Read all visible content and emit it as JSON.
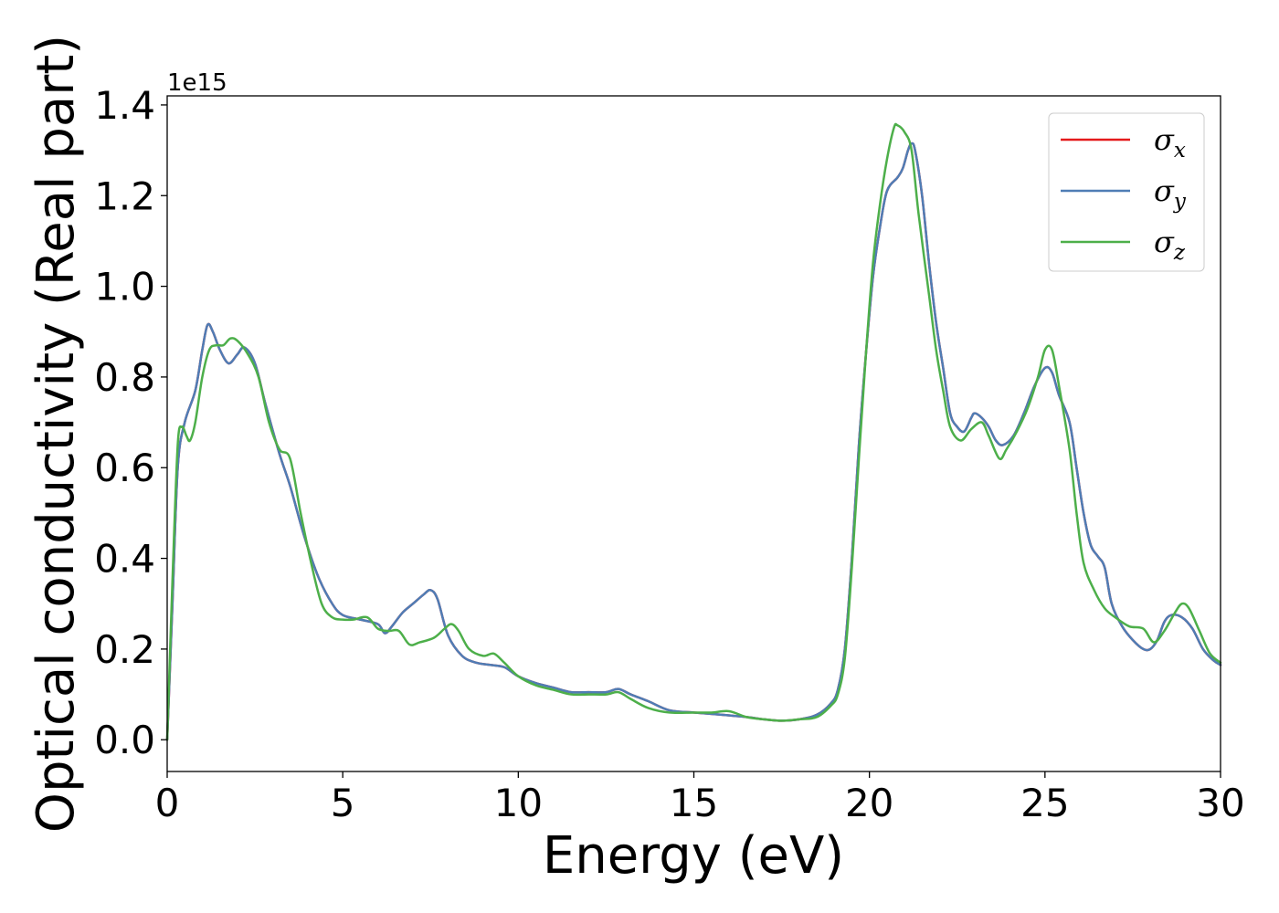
{
  "chart_data": {
    "type": "line",
    "xlabel": "Energy (eV)",
    "ylabel": "Optical conductivity (Real part)",
    "y_offset_label": "1e15",
    "xlim": [
      0,
      30
    ],
    "ylim": [
      -0.07,
      1.42
    ],
    "xticks": [
      0,
      5,
      10,
      15,
      20,
      25,
      30
    ],
    "yticks": [
      0.0,
      0.2,
      0.4,
      0.6,
      0.8,
      1.0,
      1.2,
      1.4
    ],
    "xtick_labels": [
      "0",
      "5",
      "10",
      "15",
      "20",
      "25",
      "30"
    ],
    "ytick_labels": [
      "0.0",
      "0.2",
      "0.4",
      "0.6",
      "0.8",
      "1.0",
      "1.2",
      "1.4"
    ],
    "grid": false,
    "legend_position": "top-right",
    "series": [
      {
        "name": "σx",
        "symbol": "σ",
        "subscript": "x",
        "color": "#e41a1c",
        "points": [
          [
            0,
            0.0
          ],
          [
            0.15,
            0.3
          ],
          [
            0.3,
            0.6
          ],
          [
            0.5,
            0.7
          ],
          [
            0.8,
            0.77
          ],
          [
            1.0,
            0.86
          ],
          [
            1.15,
            0.915
          ],
          [
            1.3,
            0.9
          ],
          [
            1.5,
            0.86
          ],
          [
            1.75,
            0.83
          ],
          [
            2.0,
            0.85
          ],
          [
            2.2,
            0.865
          ],
          [
            2.5,
            0.83
          ],
          [
            2.8,
            0.74
          ],
          [
            3.2,
            0.63
          ],
          [
            3.5,
            0.56
          ],
          [
            3.9,
            0.45
          ],
          [
            4.3,
            0.36
          ],
          [
            4.7,
            0.3
          ],
          [
            5.0,
            0.275
          ],
          [
            5.5,
            0.265
          ],
          [
            6.0,
            0.255
          ],
          [
            6.2,
            0.235
          ],
          [
            6.4,
            0.25
          ],
          [
            6.7,
            0.28
          ],
          [
            7.0,
            0.3
          ],
          [
            7.3,
            0.32
          ],
          [
            7.5,
            0.33
          ],
          [
            7.7,
            0.31
          ],
          [
            8.0,
            0.23
          ],
          [
            8.4,
            0.185
          ],
          [
            8.8,
            0.17
          ],
          [
            9.2,
            0.165
          ],
          [
            9.6,
            0.16
          ],
          [
            10.0,
            0.14
          ],
          [
            10.5,
            0.125
          ],
          [
            11.0,
            0.115
          ],
          [
            11.5,
            0.105
          ],
          [
            12.0,
            0.105
          ],
          [
            12.5,
            0.105
          ],
          [
            12.85,
            0.112
          ],
          [
            13.2,
            0.1
          ],
          [
            13.7,
            0.085
          ],
          [
            14.3,
            0.065
          ],
          [
            15.0,
            0.06
          ],
          [
            15.8,
            0.055
          ],
          [
            16.5,
            0.05
          ],
          [
            17.0,
            0.045
          ],
          [
            17.5,
            0.042
          ],
          [
            18.0,
            0.045
          ],
          [
            18.5,
            0.055
          ],
          [
            18.9,
            0.08
          ],
          [
            19.1,
            0.11
          ],
          [
            19.3,
            0.2
          ],
          [
            19.5,
            0.4
          ],
          [
            19.7,
            0.65
          ],
          [
            19.9,
            0.85
          ],
          [
            20.1,
            1.02
          ],
          [
            20.3,
            1.13
          ],
          [
            20.5,
            1.21
          ],
          [
            20.8,
            1.24
          ],
          [
            20.95,
            1.26
          ],
          [
            21.1,
            1.3
          ],
          [
            21.2,
            1.315
          ],
          [
            21.3,
            1.3
          ],
          [
            21.5,
            1.2
          ],
          [
            21.7,
            1.05
          ],
          [
            21.9,
            0.92
          ],
          [
            22.1,
            0.82
          ],
          [
            22.3,
            0.72
          ],
          [
            22.5,
            0.69
          ],
          [
            22.7,
            0.68
          ],
          [
            22.9,
            0.71
          ],
          [
            23.0,
            0.72
          ],
          [
            23.2,
            0.71
          ],
          [
            23.4,
            0.69
          ],
          [
            23.6,
            0.66
          ],
          [
            23.8,
            0.65
          ],
          [
            24.1,
            0.67
          ],
          [
            24.4,
            0.72
          ],
          [
            24.7,
            0.78
          ],
          [
            25.0,
            0.82
          ],
          [
            25.2,
            0.81
          ],
          [
            25.4,
            0.76
          ],
          [
            25.7,
            0.7
          ],
          [
            25.9,
            0.6
          ],
          [
            26.1,
            0.5
          ],
          [
            26.3,
            0.43
          ],
          [
            26.5,
            0.405
          ],
          [
            26.7,
            0.38
          ],
          [
            26.9,
            0.3
          ],
          [
            27.2,
            0.25
          ],
          [
            27.5,
            0.22
          ],
          [
            27.8,
            0.2
          ],
          [
            28.0,
            0.2
          ],
          [
            28.2,
            0.22
          ],
          [
            28.4,
            0.26
          ],
          [
            28.6,
            0.275
          ],
          [
            28.9,
            0.27
          ],
          [
            29.2,
            0.245
          ],
          [
            29.5,
            0.2
          ],
          [
            29.8,
            0.175
          ],
          [
            30.0,
            0.165
          ]
        ]
      },
      {
        "name": "σy",
        "symbol": "σ",
        "subscript": "y",
        "color": "#4f7db5",
        "points": [
          [
            0,
            0.0
          ],
          [
            0.15,
            0.3
          ],
          [
            0.3,
            0.6
          ],
          [
            0.5,
            0.7
          ],
          [
            0.8,
            0.77
          ],
          [
            1.0,
            0.86
          ],
          [
            1.15,
            0.915
          ],
          [
            1.3,
            0.9
          ],
          [
            1.5,
            0.86
          ],
          [
            1.75,
            0.83
          ],
          [
            2.0,
            0.85
          ],
          [
            2.2,
            0.865
          ],
          [
            2.5,
            0.83
          ],
          [
            2.8,
            0.74
          ],
          [
            3.2,
            0.63
          ],
          [
            3.5,
            0.56
          ],
          [
            3.9,
            0.45
          ],
          [
            4.3,
            0.36
          ],
          [
            4.7,
            0.3
          ],
          [
            5.0,
            0.275
          ],
          [
            5.5,
            0.265
          ],
          [
            6.0,
            0.255
          ],
          [
            6.2,
            0.235
          ],
          [
            6.4,
            0.25
          ],
          [
            6.7,
            0.28
          ],
          [
            7.0,
            0.3
          ],
          [
            7.3,
            0.32
          ],
          [
            7.5,
            0.33
          ],
          [
            7.7,
            0.31
          ],
          [
            8.0,
            0.23
          ],
          [
            8.4,
            0.185
          ],
          [
            8.8,
            0.17
          ],
          [
            9.2,
            0.165
          ],
          [
            9.6,
            0.16
          ],
          [
            10.0,
            0.14
          ],
          [
            10.5,
            0.125
          ],
          [
            11.0,
            0.115
          ],
          [
            11.5,
            0.105
          ],
          [
            12.0,
            0.105
          ],
          [
            12.5,
            0.105
          ],
          [
            12.85,
            0.112
          ],
          [
            13.2,
            0.1
          ],
          [
            13.7,
            0.085
          ],
          [
            14.3,
            0.065
          ],
          [
            15.0,
            0.06
          ],
          [
            15.8,
            0.055
          ],
          [
            16.5,
            0.05
          ],
          [
            17.0,
            0.045
          ],
          [
            17.5,
            0.042
          ],
          [
            18.0,
            0.045
          ],
          [
            18.5,
            0.055
          ],
          [
            18.9,
            0.08
          ],
          [
            19.1,
            0.11
          ],
          [
            19.3,
            0.2
          ],
          [
            19.5,
            0.4
          ],
          [
            19.7,
            0.65
          ],
          [
            19.9,
            0.85
          ],
          [
            20.1,
            1.02
          ],
          [
            20.3,
            1.13
          ],
          [
            20.5,
            1.21
          ],
          [
            20.8,
            1.24
          ],
          [
            20.95,
            1.26
          ],
          [
            21.1,
            1.3
          ],
          [
            21.2,
            1.315
          ],
          [
            21.3,
            1.3
          ],
          [
            21.5,
            1.2
          ],
          [
            21.7,
            1.05
          ],
          [
            21.9,
            0.92
          ],
          [
            22.1,
            0.82
          ],
          [
            22.3,
            0.72
          ],
          [
            22.5,
            0.69
          ],
          [
            22.7,
            0.68
          ],
          [
            22.9,
            0.71
          ],
          [
            23.0,
            0.72
          ],
          [
            23.2,
            0.71
          ],
          [
            23.4,
            0.69
          ],
          [
            23.6,
            0.66
          ],
          [
            23.8,
            0.65
          ],
          [
            24.1,
            0.67
          ],
          [
            24.4,
            0.72
          ],
          [
            24.7,
            0.78
          ],
          [
            25.0,
            0.82
          ],
          [
            25.2,
            0.81
          ],
          [
            25.4,
            0.76
          ],
          [
            25.7,
            0.7
          ],
          [
            25.9,
            0.6
          ],
          [
            26.1,
            0.5
          ],
          [
            26.3,
            0.43
          ],
          [
            26.5,
            0.405
          ],
          [
            26.7,
            0.38
          ],
          [
            26.9,
            0.3
          ],
          [
            27.2,
            0.25
          ],
          [
            27.5,
            0.22
          ],
          [
            27.8,
            0.2
          ],
          [
            28.0,
            0.2
          ],
          [
            28.2,
            0.22
          ],
          [
            28.4,
            0.26
          ],
          [
            28.6,
            0.275
          ],
          [
            28.9,
            0.27
          ],
          [
            29.2,
            0.245
          ],
          [
            29.5,
            0.2
          ],
          [
            29.8,
            0.175
          ],
          [
            30.0,
            0.165
          ]
        ]
      },
      {
        "name": "σz",
        "symbol": "σ",
        "subscript": "z",
        "color": "#4daf4a",
        "points": [
          [
            0,
            0.0
          ],
          [
            0.15,
            0.35
          ],
          [
            0.3,
            0.65
          ],
          [
            0.42,
            0.69
          ],
          [
            0.55,
            0.67
          ],
          [
            0.65,
            0.66
          ],
          [
            0.8,
            0.7
          ],
          [
            1.0,
            0.8
          ],
          [
            1.2,
            0.86
          ],
          [
            1.4,
            0.87
          ],
          [
            1.6,
            0.87
          ],
          [
            1.8,
            0.885
          ],
          [
            2.0,
            0.88
          ],
          [
            2.3,
            0.85
          ],
          [
            2.6,
            0.8
          ],
          [
            2.9,
            0.7
          ],
          [
            3.2,
            0.64
          ],
          [
            3.5,
            0.62
          ],
          [
            3.8,
            0.5
          ],
          [
            4.1,
            0.39
          ],
          [
            4.4,
            0.3
          ],
          [
            4.7,
            0.27
          ],
          [
            5.0,
            0.265
          ],
          [
            5.3,
            0.265
          ],
          [
            5.7,
            0.27
          ],
          [
            6.0,
            0.245
          ],
          [
            6.3,
            0.24
          ],
          [
            6.6,
            0.24
          ],
          [
            6.9,
            0.21
          ],
          [
            7.2,
            0.215
          ],
          [
            7.6,
            0.225
          ],
          [
            7.9,
            0.245
          ],
          [
            8.1,
            0.255
          ],
          [
            8.3,
            0.24
          ],
          [
            8.6,
            0.2
          ],
          [
            9.0,
            0.185
          ],
          [
            9.3,
            0.19
          ],
          [
            9.6,
            0.17
          ],
          [
            10.0,
            0.14
          ],
          [
            10.5,
            0.12
          ],
          [
            11.0,
            0.11
          ],
          [
            11.5,
            0.1
          ],
          [
            12.0,
            0.1
          ],
          [
            12.5,
            0.1
          ],
          [
            12.85,
            0.105
          ],
          [
            13.2,
            0.09
          ],
          [
            13.7,
            0.07
          ],
          [
            14.3,
            0.06
          ],
          [
            15.0,
            0.06
          ],
          [
            15.5,
            0.06
          ],
          [
            16.0,
            0.063
          ],
          [
            16.5,
            0.05
          ],
          [
            17.0,
            0.045
          ],
          [
            17.5,
            0.042
          ],
          [
            18.0,
            0.045
          ],
          [
            18.5,
            0.05
          ],
          [
            18.9,
            0.075
          ],
          [
            19.1,
            0.1
          ],
          [
            19.3,
            0.18
          ],
          [
            19.5,
            0.38
          ],
          [
            19.7,
            0.62
          ],
          [
            19.9,
            0.85
          ],
          [
            20.1,
            1.05
          ],
          [
            20.3,
            1.18
          ],
          [
            20.5,
            1.28
          ],
          [
            20.7,
            1.35
          ],
          [
            20.8,
            1.355
          ],
          [
            21.0,
            1.34
          ],
          [
            21.2,
            1.3
          ],
          [
            21.4,
            1.16
          ],
          [
            21.7,
            0.98
          ],
          [
            21.9,
            0.86
          ],
          [
            22.1,
            0.77
          ],
          [
            22.3,
            0.69
          ],
          [
            22.6,
            0.66
          ],
          [
            22.9,
            0.685
          ],
          [
            23.2,
            0.7
          ],
          [
            23.4,
            0.67
          ],
          [
            23.7,
            0.62
          ],
          [
            23.9,
            0.64
          ],
          [
            24.2,
            0.68
          ],
          [
            24.5,
            0.73
          ],
          [
            24.8,
            0.8
          ],
          [
            25.0,
            0.86
          ],
          [
            25.2,
            0.86
          ],
          [
            25.4,
            0.78
          ],
          [
            25.7,
            0.64
          ],
          [
            25.9,
            0.5
          ],
          [
            26.1,
            0.39
          ],
          [
            26.4,
            0.33
          ],
          [
            26.7,
            0.29
          ],
          [
            27.0,
            0.27
          ],
          [
            27.4,
            0.25
          ],
          [
            27.8,
            0.245
          ],
          [
            28.1,
            0.215
          ],
          [
            28.4,
            0.24
          ],
          [
            28.7,
            0.28
          ],
          [
            28.9,
            0.3
          ],
          [
            29.1,
            0.29
          ],
          [
            29.4,
            0.24
          ],
          [
            29.7,
            0.19
          ],
          [
            30.0,
            0.17
          ]
        ]
      }
    ]
  }
}
